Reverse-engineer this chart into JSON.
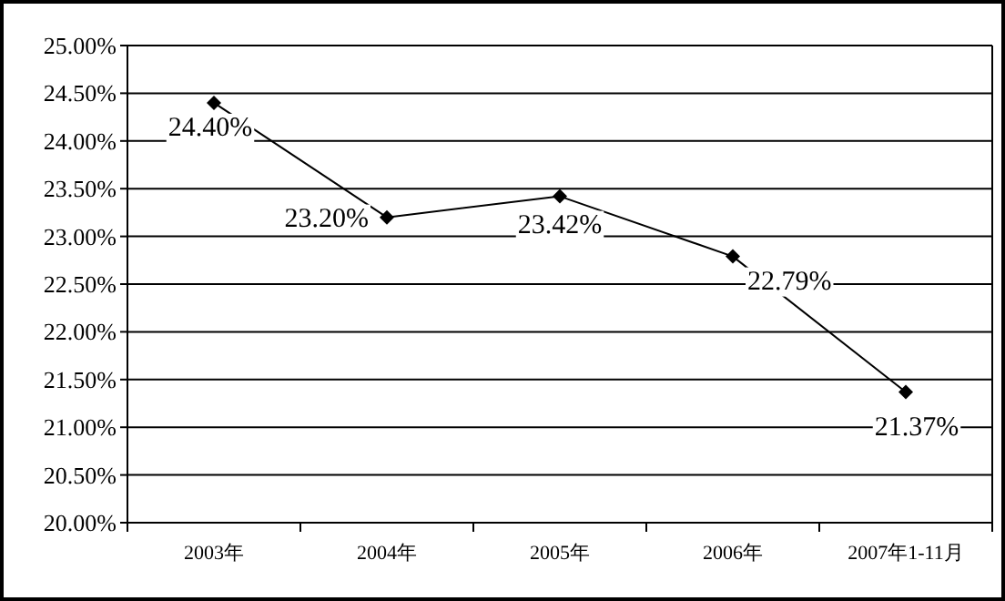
{
  "chart_data": {
    "type": "line",
    "categories": [
      "2003年",
      "2004年",
      "2005年",
      "2006年",
      "2007年1-11月"
    ],
    "series": [
      {
        "color": "#000000",
        "values": [
          24.4,
          23.2,
          23.42,
          22.79,
          21.37
        ],
        "value_labels": [
          "24.40%",
          "23.20%",
          "23.42%",
          "22.79%",
          "21.37%"
        ]
      }
    ],
    "ylim": [
      20,
      25
    ],
    "yticks": [
      {
        "value": 20,
        "label": "20.00%"
      },
      {
        "value": 20.5,
        "label": "20.50%"
      },
      {
        "value": 21,
        "label": "21.00%"
      },
      {
        "value": 21.5,
        "label": "21.50%"
      },
      {
        "value": 22,
        "label": "22.00%"
      },
      {
        "value": 22.5,
        "label": "22.50%"
      },
      {
        "value": 23,
        "label": "23.00%"
      },
      {
        "value": 23.5,
        "label": "23.50%"
      },
      {
        "value": 24,
        "label": "24.00%"
      },
      {
        "value": 24.5,
        "label": "24.50%"
      },
      {
        "value": 25,
        "label": "25.00%"
      }
    ],
    "grid": "y",
    "marker": "diamond",
    "line_style": "solid"
  }
}
